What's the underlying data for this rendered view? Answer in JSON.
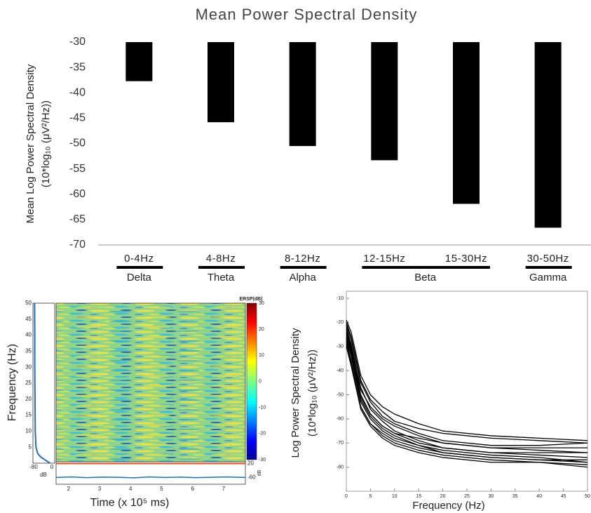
{
  "chart_data": [
    {
      "type": "bar",
      "title": "Mean Power Spectral Density",
      "ylabel": [
        "Mean Log Power Spectral Density",
        "(10*log₁₀ (μV²/Hz))"
      ],
      "categories": [
        "0-4Hz",
        "4-8Hz",
        "8-12Hz",
        "12-15Hz",
        "15-30Hz",
        "30-50Hz"
      ],
      "values": [
        -37.7,
        -45.8,
        -50.5,
        -53.3,
        -61.9,
        -66.6
      ],
      "color": "#000000",
      "ylim": [
        -70,
        -30
      ],
      "yticks": [
        -30,
        -35,
        -40,
        -45,
        -50,
        -55,
        -60,
        -65,
        -70
      ],
      "band_groups": [
        {
          "name": "Delta",
          "span": 1
        },
        {
          "name": "Theta",
          "span": 1
        },
        {
          "name": "Alpha",
          "span": 1
        },
        {
          "name": "Beta",
          "span": 2
        },
        {
          "name": "Gamma",
          "span": 1
        }
      ]
    },
    {
      "type": "heatmap",
      "ylabel": "Frequency (Hz)",
      "xlabel": "Time (x 10⁵ ms)",
      "ylim": [
        0,
        50
      ],
      "yticks": [
        5,
        10,
        15,
        20,
        25,
        30,
        35,
        40,
        45,
        50
      ],
      "xlim": [
        1.6,
        7.7
      ],
      "xticks": [
        2,
        3,
        4,
        5,
        6,
        7
      ],
      "colorbar_label": "ERSP(dB)",
      "clim": [
        -30,
        30
      ],
      "cticks": [
        30,
        20,
        10,
        0,
        -10,
        -20,
        -30
      ],
      "spectrum": {
        "xlabel": "dB",
        "xlim": [
          -80,
          0
        ],
        "xticks": [
          -80,
          0
        ],
        "color": "#1f6fb4",
        "freq": [
          0,
          1,
          2,
          3,
          5,
          10,
          20,
          30,
          40,
          50
        ],
        "values": [
          -8,
          -30,
          -50,
          -62,
          -70,
          -73,
          -74,
          -75,
          -75,
          -76
        ]
      },
      "trace": {
        "ylabel": "dB",
        "ylim": [
          -100,
          30
        ],
        "yticks": [
          20,
          -60
        ],
        "baseline": 20,
        "baseline_color": "#d9542b",
        "color": "#1f6fb4",
        "x": [
          1.6,
          2.1,
          2.6,
          3.1,
          3.6,
          4.1,
          4.6,
          5.1,
          5.6,
          6.1,
          6.6,
          7.1,
          7.7
        ],
        "values": [
          -61,
          -58,
          -62,
          -59,
          -60,
          -63,
          -58,
          -61,
          -59,
          -62,
          -60,
          -58,
          -61
        ]
      }
    },
    {
      "type": "line",
      "ylabel": [
        "Log Power Spectral Density",
        "(10*log₁₀ (μV²/Hz))"
      ],
      "xlabel": "Frequency (Hz)",
      "color": "#000000",
      "xlim": [
        0,
        50
      ],
      "xticks": [
        0,
        5,
        10,
        15,
        20,
        25,
        30,
        35,
        40,
        45,
        50
      ],
      "ylim": [
        -90,
        -10
      ],
      "yticks": [
        -10,
        -20,
        -30,
        -40,
        -50,
        -60,
        -70,
        -80
      ],
      "x": [
        0,
        1,
        2,
        3,
        5,
        7.5,
        10,
        15,
        20,
        30,
        40,
        50
      ],
      "series": [
        {
          "values": [
            -19,
            -24,
            -33,
            -42,
            -50,
            -55,
            -58,
            -62,
            -65,
            -67,
            -68,
            -69
          ]
        },
        {
          "values": [
            -21,
            -27,
            -36,
            -45,
            -53,
            -59,
            -62,
            -66,
            -69,
            -71,
            -71,
            -70
          ]
        },
        {
          "values": [
            -23,
            -30,
            -40,
            -48,
            -55,
            -60,
            -63,
            -67,
            -70,
            -72,
            -72,
            -72
          ]
        },
        {
          "values": [
            -25,
            -32,
            -42,
            -51,
            -58,
            -63,
            -66,
            -70,
            -72,
            -74,
            -74,
            -74
          ]
        },
        {
          "values": [
            -22,
            -29,
            -38,
            -47,
            -56,
            -61,
            -65,
            -69,
            -72,
            -74,
            -75,
            -76
          ]
        },
        {
          "values": [
            -27,
            -34,
            -44,
            -53,
            -60,
            -65,
            -68,
            -71,
            -74,
            -76,
            -77,
            -77
          ]
        },
        {
          "values": [
            -26,
            -33,
            -43,
            -52,
            -59,
            -64,
            -67,
            -71,
            -73,
            -75,
            -76,
            -78
          ]
        },
        {
          "values": [
            -28,
            -36,
            -46,
            -55,
            -62,
            -67,
            -70,
            -73,
            -75,
            -77,
            -78,
            -79
          ]
        },
        {
          "values": [
            -24,
            -31,
            -41,
            -50,
            -58,
            -63,
            -66,
            -68,
            -70,
            -72,
            -73,
            -74
          ]
        },
        {
          "values": [
            -30,
            -38,
            -47,
            -56,
            -63,
            -68,
            -71,
            -74,
            -76,
            -78,
            -78,
            -80
          ]
        },
        {
          "values": [
            -20,
            -26,
            -35,
            -44,
            -52,
            -57,
            -61,
            -64,
            -66,
            -68,
            -69,
            -70
          ]
        },
        {
          "values": [
            -29,
            -37,
            -46,
            -55,
            -62,
            -66,
            -69,
            -72,
            -74,
            -76,
            -77,
            -78
          ]
        }
      ]
    }
  ]
}
